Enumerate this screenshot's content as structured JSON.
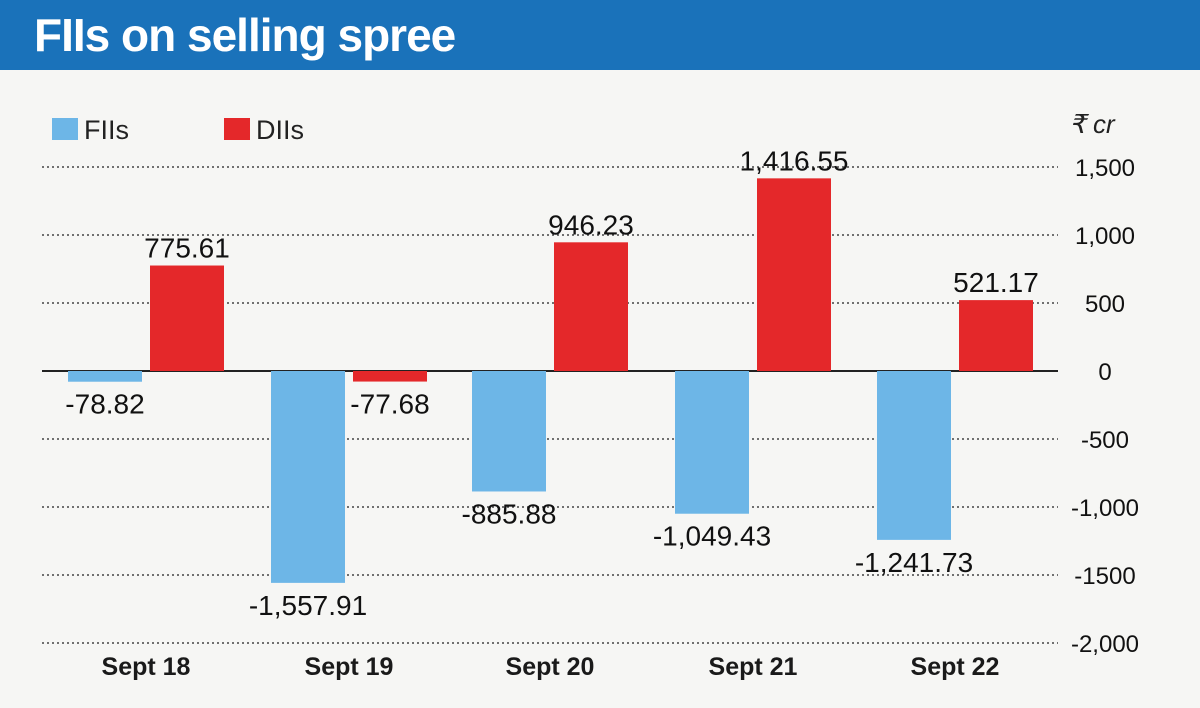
{
  "header": {
    "title": "FIIs on selling spree"
  },
  "colors": {
    "title_bar": "#1a72ba",
    "fiis": "#6db6e7",
    "diis": "#e4282a",
    "background": "#f6f6f4",
    "gridline": "#444444"
  },
  "chart_data": {
    "type": "bar",
    "title": "FIIs on selling spree",
    "unit": "₹ cr",
    "categories": [
      "Sept 18",
      "Sept 19",
      "Sept 20",
      "Sept 21",
      "Sept 22"
    ],
    "series": [
      {
        "name": "FIIs",
        "values": [
          -78.82,
          -1557.91,
          -885.88,
          -1049.43,
          -1241.73
        ],
        "labels": [
          "-78.82",
          "-1,557.91",
          "-885.88",
          "-1,049.43",
          "-1,241.73"
        ]
      },
      {
        "name": "DIIs",
        "values": [
          775.61,
          -77.68,
          946.23,
          1416.55,
          521.17
        ],
        "labels": [
          "775.61",
          "-77.68",
          "946.23",
          "1,416.55",
          "521.17"
        ]
      }
    ],
    "yticks": [
      1500,
      1000,
      500,
      0,
      -500,
      -1000,
      -1500,
      -2000
    ],
    "ytick_labels": [
      "1,500",
      "1,000",
      "500",
      "0",
      "-500",
      "-1,000",
      "-1500",
      "-2,000"
    ],
    "ylim": [
      -2000,
      1500
    ],
    "grid": true,
    "legend_position": "top-left",
    "yaxis_position": "right"
  }
}
